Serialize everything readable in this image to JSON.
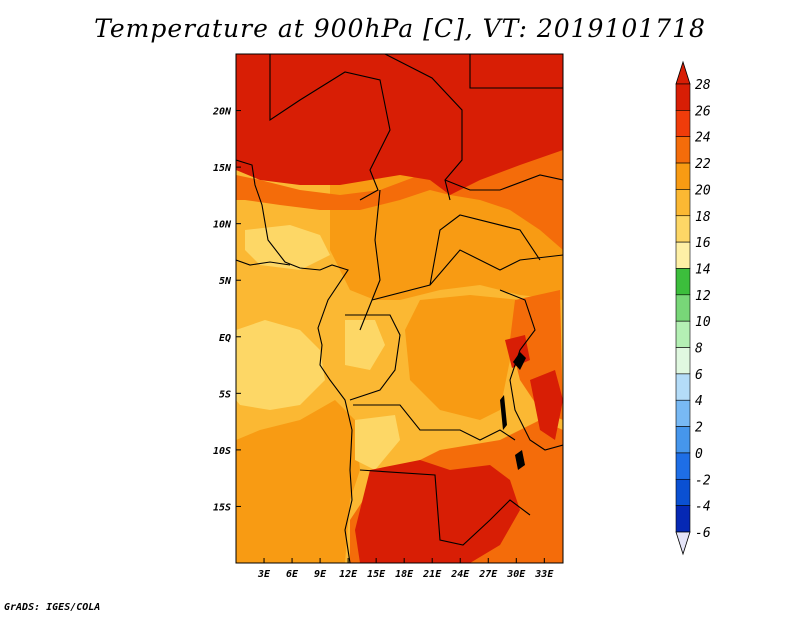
{
  "title": "Temperature at 900hPa [C], VT: 2019101718",
  "credit": "GrADS: IGES/COLA",
  "map": {
    "lon_range": [
      0,
      35
    ],
    "lat_range": [
      -20,
      25
    ],
    "lon_ticks": [
      {
        "value": 3,
        "label": "3E"
      },
      {
        "value": 6,
        "label": "6E"
      },
      {
        "value": 9,
        "label": "9E"
      },
      {
        "value": 12,
        "label": "12E"
      },
      {
        "value": 15,
        "label": "15E"
      },
      {
        "value": 18,
        "label": "18E"
      },
      {
        "value": 21,
        "label": "21E"
      },
      {
        "value": 24,
        "label": "24E"
      },
      {
        "value": 27,
        "label": "27E"
      },
      {
        "value": 30,
        "label": "30E"
      },
      {
        "value": 33,
        "label": "33E"
      }
    ],
    "lat_ticks": [
      {
        "value": 20,
        "label": "20N"
      },
      {
        "value": 15,
        "label": "15N"
      },
      {
        "value": 10,
        "label": "10N"
      },
      {
        "value": 5,
        "label": "5N"
      },
      {
        "value": 0,
        "label": "EQ"
      },
      {
        "value": -5,
        "label": "5S"
      },
      {
        "value": -10,
        "label": "10S"
      },
      {
        "value": -15,
        "label": "15S"
      }
    ]
  },
  "colorbar": {
    "levels": [
      "28",
      "26",
      "24",
      "22",
      "20",
      "18",
      "16",
      "14",
      "12",
      "10",
      "8",
      "6",
      "4",
      "2",
      "0",
      "-2",
      "-4",
      "-6"
    ],
    "colors": [
      "#d81e05",
      "#f03c0a",
      "#f46c0a",
      "#f89b13",
      "#fbb833",
      "#fdd766",
      "#fef0a6",
      "#3cbe3c",
      "#78d778",
      "#b4f0b4",
      "#e0f8e0",
      "#b4dcf8",
      "#78b9f4",
      "#4696ec",
      "#1e6ee6",
      "#0a50d2",
      "#0528b4",
      "#000a78"
    ],
    "top_arrow_color": "#d81e05",
    "bottom_arrow_color": "#e4e4f8"
  }
}
